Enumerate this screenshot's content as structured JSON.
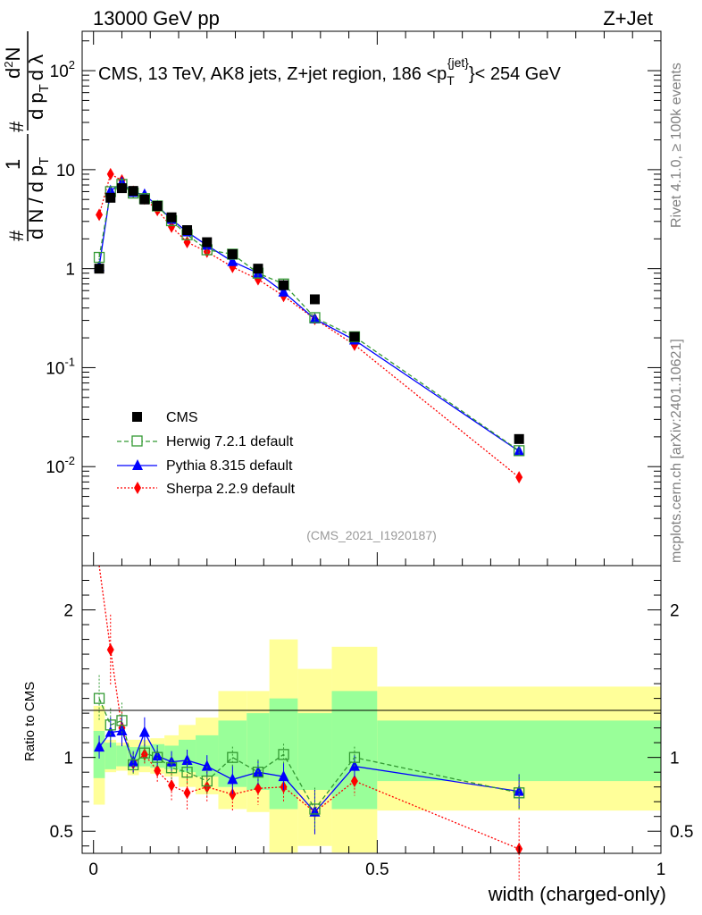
{
  "header": {
    "energy": "13000 GeV pp",
    "process": "Z+Jet"
  },
  "side_labels": {
    "rivet": "Rivet 4.1.0, ≥ 100k events",
    "mcplots": "mcplots.cern.ch [arXiv:2401.10621]"
  },
  "chart_data": [
    {
      "type": "line",
      "title": "CMS, 13 TeV, AK8 jets, Z+jet region, 186 <p_T^{jet}< 254 GeV",
      "analysis_tag": "(CMS_2021_I1920187)",
      "ylabel": "1/dN/dp_T # d²N/(dp_T dλ)",
      "yscale": "log",
      "xlim": [
        -0.02,
        1.0
      ],
      "ylim": [
        0.001,
        250
      ],
      "ytick_labels": [
        "10^{-2}",
        "10^{-1}",
        "1",
        "10",
        "10^2"
      ],
      "legend_position": "lower-left",
      "bins": [
        [
          0,
          0.02
        ],
        [
          0.02,
          0.04
        ],
        [
          0.04,
          0.06
        ],
        [
          0.06,
          0.08
        ],
        [
          0.08,
          0.1
        ],
        [
          0.1,
          0.125
        ],
        [
          0.125,
          0.15
        ],
        [
          0.15,
          0.18
        ],
        [
          0.18,
          0.22
        ],
        [
          0.22,
          0.27
        ],
        [
          0.27,
          0.31
        ],
        [
          0.31,
          0.36
        ],
        [
          0.36,
          0.42
        ],
        [
          0.42,
          0.5
        ],
        [
          0.5,
          1.0
        ]
      ],
      "x": [
        0.01,
        0.03,
        0.05,
        0.07,
        0.09,
        0.1125,
        0.1375,
        0.165,
        0.2,
        0.245,
        0.29,
        0.335,
        0.39,
        0.46,
        0.75
      ],
      "series": [
        {
          "name": "CMS",
          "color": "#000000",
          "marker": "square",
          "values": [
            1.0,
            5.2,
            6.5,
            6.1,
            5.0,
            4.3,
            3.3,
            2.45,
            1.85,
            1.4,
            1.0,
            0.68,
            0.49,
            0.205,
            0.019
          ]
        },
        {
          "name": "Herwig 7.2.1 default",
          "color": "#339933",
          "marker": "open-square",
          "line": "dashed",
          "values": [
            1.3,
            6.0,
            7.1,
            5.8,
            5.1,
            4.3,
            3.05,
            2.2,
            1.55,
            1.4,
            0.9,
            0.7,
            0.32,
            0.205,
            0.0145
          ]
        },
        {
          "name": "Pythia 8.315 default",
          "color": "#0000ff",
          "marker": "triangle",
          "line": "solid",
          "values": [
            1.05,
            6.1,
            7.4,
            5.9,
            5.6,
            4.3,
            3.15,
            2.35,
            1.72,
            1.18,
            0.9,
            0.58,
            0.31,
            0.19,
            0.0143
          ]
        },
        {
          "name": "Sherpa 2.2.9 default",
          "color": "#ff0000",
          "marker": "diamond",
          "line": "dotted",
          "values": [
            3.5,
            9.0,
            7.8,
            6.0,
            5.1,
            3.9,
            2.65,
            1.85,
            1.48,
            1.04,
            0.78,
            0.53,
            0.31,
            0.17,
            0.0078
          ]
        }
      ]
    },
    {
      "type": "line",
      "ylabel": "Ratio to CMS",
      "xlabel": "width (charged-only)",
      "xlim": [
        -0.02,
        1.0
      ],
      "ylim": [
        0.35,
        2.3
      ],
      "ytick_labels": [
        "0.5",
        "1",
        "2"
      ],
      "xtick_labels": [
        "0",
        "0.5",
        "1"
      ],
      "bands": {
        "inner": [
          [
            0.86,
            1.18
          ],
          [
            0.92,
            1.1
          ],
          [
            0.94,
            1.08
          ],
          [
            0.93,
            1.07
          ],
          [
            0.94,
            1.08
          ],
          [
            0.93,
            1.09
          ],
          [
            0.92,
            1.08
          ],
          [
            0.9,
            1.12
          ],
          [
            0.87,
            1.15
          ],
          [
            0.8,
            1.25
          ],
          [
            0.78,
            1.3
          ],
          [
            0.65,
            1.4
          ],
          [
            0.78,
            1.3
          ],
          [
            0.65,
            1.45
          ],
          [
            0.84,
            1.25
          ]
        ],
        "outer": [
          [
            0.68,
            1.35
          ],
          [
            0.9,
            1.12
          ],
          [
            0.91,
            1.1
          ],
          [
            0.88,
            1.12
          ],
          [
            0.9,
            1.12
          ],
          [
            0.89,
            1.13
          ],
          [
            0.87,
            1.15
          ],
          [
            0.8,
            1.22
          ],
          [
            0.75,
            1.27
          ],
          [
            0.65,
            1.45
          ],
          [
            0.63,
            1.45
          ],
          [
            0.33,
            1.8
          ],
          [
            0.4,
            1.6
          ],
          [
            0.3,
            1.75
          ],
          [
            0.64,
            1.48
          ]
        ]
      },
      "series": [
        {
          "name": "Herwig 7.2.1 default",
          "color": "#339933",
          "marker": "open-square",
          "line": "dashed",
          "values": [
            1.4,
            1.22,
            1.25,
            0.95,
            1.03,
            1.0,
            0.93,
            0.9,
            0.84,
            1.0,
            0.9,
            1.02,
            0.65,
            1.0,
            0.76
          ]
        },
        {
          "name": "Pythia 8.315 default",
          "color": "#0000ff",
          "marker": "triangle",
          "line": "solid",
          "values": [
            1.07,
            1.17,
            1.18,
            0.97,
            1.17,
            1.01,
            0.97,
            0.98,
            0.94,
            0.85,
            0.9,
            0.87,
            0.63,
            0.94,
            0.77
          ]
        },
        {
          "name": "Sherpa 2.2.9 default",
          "color": "#ff0000",
          "marker": "diamond",
          "line": "dotted",
          "values": [
            2.4,
            1.73,
            1.2,
            0.96,
            1.02,
            0.91,
            0.81,
            0.76,
            0.8,
            0.75,
            0.79,
            0.8,
            0.63,
            0.84,
            0.38
          ]
        }
      ]
    }
  ]
}
